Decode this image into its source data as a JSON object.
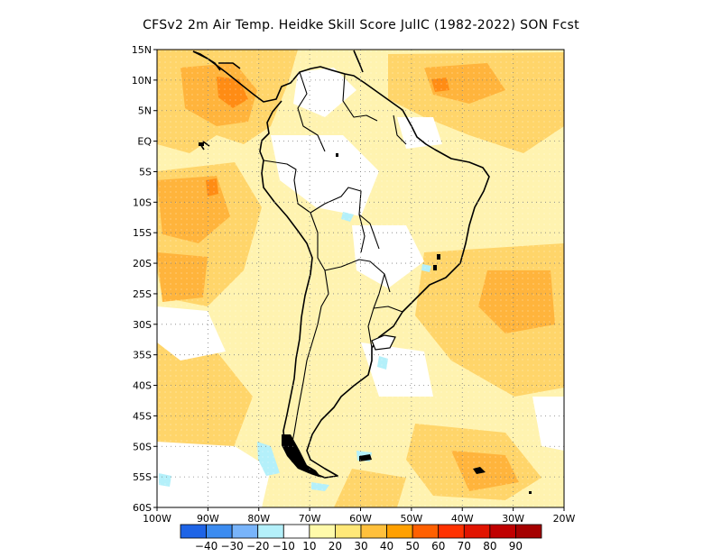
{
  "title": "CFSv2  2m Air Temp. Heidke Skill Score JulIC (1982-2022) SON Fcst",
  "map": {
    "lat_labels": [
      "15N",
      "10N",
      "5N",
      "EQ",
      "5S",
      "10S",
      "15S",
      "20S",
      "25S",
      "30S",
      "35S",
      "40S",
      "45S",
      "50S",
      "55S",
      "60S"
    ],
    "lon_labels": [
      "100W",
      "90W",
      "80W",
      "70W",
      "60W",
      "50W",
      "40W",
      "30W",
      "20W"
    ],
    "lat_range": [
      -60,
      15
    ],
    "lon_range": [
      -100,
      -20
    ],
    "grid": "dotted"
  },
  "colorbar": {
    "labels": [
      "-40",
      "-30",
      "-20",
      "-10",
      "10",
      "20",
      "30",
      "40",
      "50",
      "60",
      "70",
      "80",
      "90"
    ],
    "colors": [
      "#1e64e6",
      "#3c8cf0",
      "#78b4fa",
      "#b4f0fa",
      "#ffffff",
      "#fffaaa",
      "#ffe878",
      "#ffc03c",
      "#ffa000",
      "#ff6000",
      "#ff3200",
      "#e11400",
      "#c00000",
      "#a50000"
    ]
  }
}
